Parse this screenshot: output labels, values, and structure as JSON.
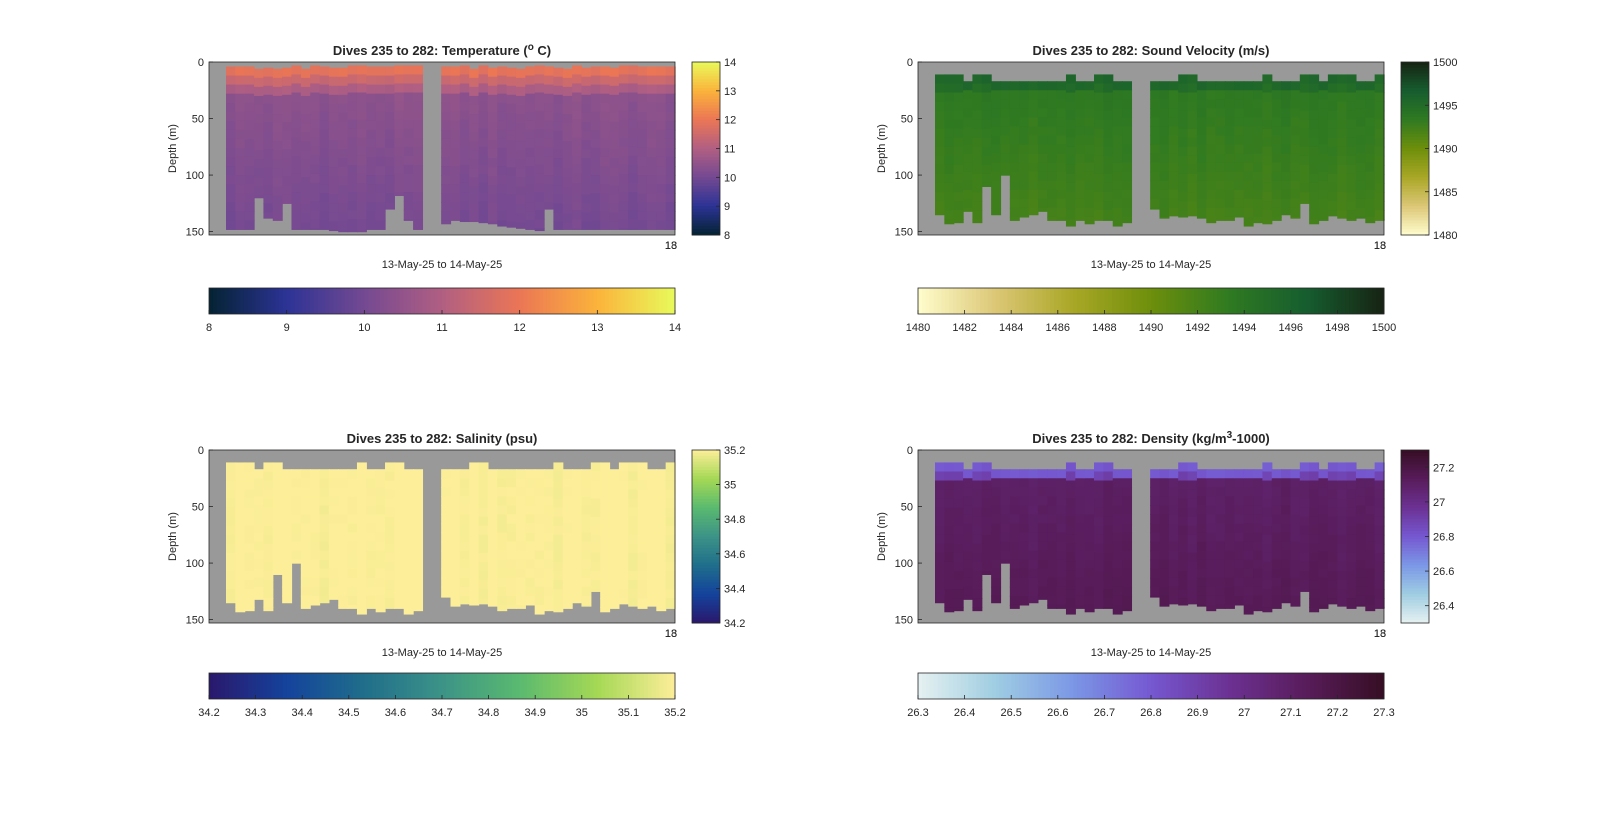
{
  "figure": {
    "background": "#ffffff",
    "missing_color": "#999999",
    "note": ""
  },
  "chart_data": [
    {
      "type": "heatmap",
      "title_parts": [
        "Dives 235 to 282: Temperature (",
        "o",
        " C)"
      ],
      "ylabel": "Depth (m)",
      "xlabel": "13-May-25 to 14-May-25",
      "ylim": [
        0,
        153
      ],
      "y_ticks": [
        "0",
        "50",
        "100",
        "150"
      ],
      "y_tick_values": [
        0,
        50,
        100,
        150
      ],
      "x_end_tick": "18",
      "x_end_tick_overlap": "13",
      "colormap": "thermal",
      "colormap_stops": [
        "#042333",
        "#2c3395",
        "#744992",
        "#b15f82",
        "#eb7655",
        "#fbb33b",
        "#e8fa5b"
      ],
      "clim": [
        8,
        14
      ],
      "cbar_vertical_ticks": [
        "8",
        "9",
        "10",
        "11",
        "12",
        "13",
        "14"
      ],
      "cbar_vertical_tick_values": [
        8,
        9,
        10,
        11,
        12,
        13,
        14
      ],
      "cbar_horizontal_ticks": [
        "8",
        "9",
        "10",
        "11",
        "12",
        "13",
        "14"
      ],
      "cbar_horizontal_tick_values": [
        8,
        9,
        10,
        11,
        12,
        13,
        14
      ],
      "surface_value": 11.9,
      "mid_value": 10.4,
      "deep_value": 10.0,
      "top_gap_m": 3,
      "bottom_depths_m": [
        148,
        148,
        148,
        120,
        138,
        140,
        125,
        148,
        148,
        148,
        148,
        149,
        150,
        150,
        150,
        148,
        148,
        130,
        118,
        140,
        148,
        0,
        0,
        143,
        140,
        141,
        141,
        142,
        143,
        145,
        146,
        147,
        148,
        149,
        130,
        148,
        148,
        148,
        148,
        148,
        148,
        148,
        148,
        148,
        148,
        148,
        148,
        148
      ]
    },
    {
      "type": "heatmap",
      "title_parts": [
        "Dives 235 to 282: Sound Velocity (m/s)"
      ],
      "ylabel": "Depth (m)",
      "xlabel": "13-May-25 to 14-May-25",
      "ylim": [
        0,
        153
      ],
      "y_ticks": [
        "0",
        "50",
        "100",
        "150"
      ],
      "y_tick_values": [
        0,
        50,
        100,
        150
      ],
      "x_end_tick": "18",
      "x_end_tick_overlap": "13",
      "colormap": "speed",
      "colormap_stops": [
        "#fffdcd",
        "#dcc776",
        "#a9a726",
        "#6d8f0b",
        "#2f7a21",
        "#165d2f",
        "#172313"
      ],
      "clim": [
        1480,
        1500
      ],
      "cbar_vertical_ticks": [
        "1480",
        "1485",
        "1490",
        "1495",
        "1500"
      ],
      "cbar_vertical_tick_values": [
        1480,
        1485,
        1490,
        1495,
        1500
      ],
      "cbar_horizontal_ticks": [
        "1480",
        "1482",
        "1484",
        "1486",
        "1488",
        "1490",
        "1492",
        "1494",
        "1496",
        "1498",
        "1500"
      ],
      "cbar_horizontal_tick_values": [
        1480,
        1482,
        1484,
        1486,
        1488,
        1490,
        1492,
        1494,
        1496,
        1498,
        1500
      ],
      "surface_value": 1495.5,
      "mid_value": 1493.5,
      "deep_value": 1492.0,
      "top_gap_m": 17,
      "bottom_depths_m": [
        135,
        143,
        142,
        132,
        142,
        110,
        135,
        100,
        140,
        137,
        135,
        132,
        140,
        140,
        145,
        140,
        143,
        140,
        140,
        145,
        142,
        0,
        0,
        130,
        138,
        136,
        137,
        136,
        138,
        142,
        140,
        140,
        137,
        145,
        142,
        143,
        140,
        135,
        138,
        125,
        143,
        140,
        136,
        138,
        140,
        138,
        142,
        140
      ]
    },
    {
      "type": "heatmap",
      "title_parts": [
        "Dives 235 to 282: Salinity (psu)"
      ],
      "ylabel": "Depth (m)",
      "xlabel": "13-May-25 to 14-May-25",
      "ylim": [
        0,
        153
      ],
      "y_ticks": [
        "0",
        "50",
        "100",
        "150"
      ],
      "y_tick_values": [
        0,
        50,
        100,
        150
      ],
      "x_end_tick": "18",
      "x_end_tick_overlap": "13",
      "colormap": "haline",
      "colormap_stops": [
        "#2a186c",
        "#14439c",
        "#206e8b",
        "#3c9387",
        "#5aba6f",
        "#a5d855",
        "#fdee99"
      ],
      "clim": [
        34.2,
        35.2
      ],
      "cbar_vertical_ticks": [
        "34.2",
        "34.4",
        "34.6",
        "34.8",
        "35",
        "35.2"
      ],
      "cbar_vertical_tick_values": [
        34.2,
        34.4,
        34.6,
        34.8,
        35,
        35.2
      ],
      "cbar_horizontal_ticks": [
        "34.2",
        "34.3",
        "34.4",
        "34.5",
        "34.6",
        "34.7",
        "34.8",
        "34.9",
        "35",
        "35.1",
        "35.2"
      ],
      "cbar_horizontal_tick_values": [
        34.2,
        34.3,
        34.4,
        34.5,
        34.6,
        34.7,
        34.8,
        34.9,
        35,
        35.1,
        35.2
      ],
      "surface_value": 35.2,
      "mid_value": 35.2,
      "deep_value": 35.2,
      "top_gap_m": 17,
      "bottom_depths_m": [
        135,
        143,
        142,
        132,
        142,
        110,
        135,
        100,
        140,
        137,
        135,
        132,
        140,
        140,
        145,
        140,
        143,
        140,
        140,
        145,
        142,
        0,
        0,
        130,
        138,
        136,
        137,
        136,
        138,
        142,
        140,
        140,
        137,
        145,
        142,
        143,
        140,
        135,
        138,
        125,
        143,
        140,
        136,
        138,
        140,
        138,
        142,
        140
      ]
    },
    {
      "type": "heatmap",
      "title_parts": [
        "Dives 235 to 282: Density (kg/m",
        "3",
        "-1000)"
      ],
      "ylabel": "Depth (m)",
      "xlabel": "13-May-25 to 14-May-25",
      "ylim": [
        0,
        153
      ],
      "y_ticks": [
        "0",
        "50",
        "100",
        "150"
      ],
      "y_tick_values": [
        0,
        50,
        100,
        150
      ],
      "x_end_tick": "18",
      "x_end_tick_overlap": "13",
      "colormap": "dense",
      "colormap_stops": [
        "#e6f1f1",
        "#9fcde2",
        "#7b97e6",
        "#7558d1",
        "#6c3193",
        "#581c5a",
        "#360e24"
      ],
      "clim": [
        26.3,
        27.3
      ],
      "cbar_vertical_ticks": [
        "26.4",
        "26.6",
        "26.8",
        "27",
        "27.2"
      ],
      "cbar_vertical_tick_values": [
        26.4,
        26.6,
        26.8,
        27,
        27.2
      ],
      "cbar_horizontal_ticks": [
        "26.3",
        "26.4",
        "26.5",
        "26.6",
        "26.7",
        "26.8",
        "26.9",
        "27",
        "27.1",
        "27.2",
        "27.3"
      ],
      "cbar_horizontal_tick_values": [
        26.3,
        26.4,
        26.5,
        26.6,
        26.7,
        26.8,
        26.9,
        27,
        27.1,
        27.2,
        27.3
      ],
      "surface_value": 26.8,
      "mid_value": 27.1,
      "deep_value": 27.15,
      "top_gap_m": 17,
      "bottom_depths_m": [
        135,
        143,
        142,
        132,
        142,
        110,
        135,
        100,
        140,
        137,
        135,
        132,
        140,
        140,
        145,
        140,
        143,
        140,
        140,
        145,
        142,
        0,
        0,
        130,
        138,
        136,
        137,
        136,
        138,
        142,
        140,
        140,
        137,
        145,
        142,
        143,
        140,
        135,
        138,
        125,
        143,
        140,
        136,
        138,
        140,
        138,
        142,
        140
      ]
    }
  ]
}
